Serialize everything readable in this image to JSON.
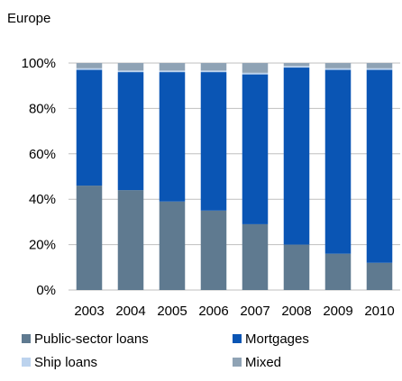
{
  "chart_data": {
    "type": "bar",
    "stacked": true,
    "title": "Europe",
    "xlabel": "",
    "ylabel": "",
    "ylim": [
      0,
      100
    ],
    "y_ticks": [
      "0%",
      "20%",
      "40%",
      "60%",
      "80%",
      "100%"
    ],
    "grid": true,
    "legend_position": "bottom",
    "categories": [
      "2003",
      "2004",
      "2005",
      "2006",
      "2007",
      "2008",
      "2009",
      "2010"
    ],
    "series": [
      {
        "name": "Public-sector loans",
        "color": "#5f7a90",
        "values": [
          46,
          44,
          39,
          35,
          29,
          20,
          16,
          12
        ]
      },
      {
        "name": "Mortgages",
        "color": "#0a55b4",
        "values": [
          51,
          52,
          57,
          61,
          66,
          78,
          81,
          85
        ]
      },
      {
        "name": "Ship loans",
        "color": "#bcd3ee",
        "values": [
          0.7,
          0.7,
          0.7,
          0.7,
          0.7,
          0.7,
          0.7,
          0.7
        ]
      },
      {
        "name": "Mixed",
        "color": "#8fa3b5",
        "values": [
          2.3,
          3.3,
          3.3,
          3.3,
          4.3,
          1.3,
          2.3,
          2.3
        ]
      }
    ]
  }
}
